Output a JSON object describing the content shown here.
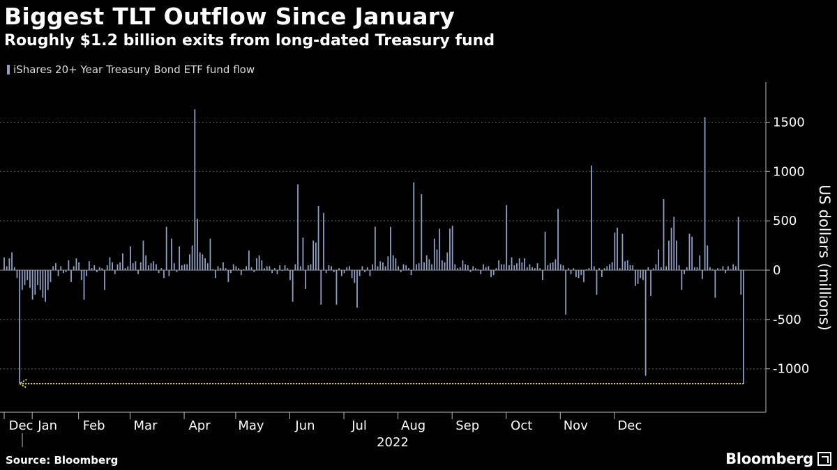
{
  "header": {
    "title": "Biggest TLT Outflow Since January",
    "subtitle": "Roughly $1.2 billion exits from long-dated Treasury fund"
  },
  "legend": {
    "label": "iShares 20+ Year Treasury Bond ETF fund flow"
  },
  "footer": {
    "source": "Source: Bloomberg",
    "brand": "Bloomberg"
  },
  "colors": {
    "bar": "#8fa0c4",
    "annotation": "#ffdf2e",
    "grid": "#666666",
    "background": "#000000"
  },
  "chart_data": {
    "type": "bar",
    "title": "Biggest TLT Outflow Since January",
    "ylabel": "US dollars (millions)",
    "xlabel": "2022",
    "ylim": [
      -1400,
      1900
    ],
    "yticks": [
      -1000,
      -500,
      0,
      500,
      1000,
      1500
    ],
    "grid": true,
    "legend_position": "top-left",
    "series": [
      {
        "name": "iShares 20+ Year Treasury Bond ETF fund flow",
        "values": [
          130,
          40,
          120,
          180,
          30,
          -80,
          -1150,
          -200,
          -150,
          -100,
          -180,
          -300,
          -250,
          -150,
          -200,
          -280,
          -320,
          -200,
          -120,
          40,
          70,
          -60,
          40,
          -30,
          -20,
          100,
          -120,
          40,
          120,
          80,
          -100,
          -300,
          -60,
          90,
          20,
          50,
          -20,
          30,
          20,
          -200,
          50,
          130,
          80,
          -40,
          60,
          80,
          170,
          20,
          40,
          240,
          70,
          90,
          -40,
          80,
          300,
          150,
          50,
          70,
          90,
          60,
          -30,
          20,
          -80,
          440,
          -60,
          320,
          70,
          -20,
          240,
          50,
          60,
          60,
          160,
          250,
          1630,
          520,
          180,
          160,
          120,
          70,
          320,
          10,
          -80,
          40,
          20,
          80,
          20,
          -120,
          -30,
          60,
          40,
          20,
          -50,
          10,
          40,
          200,
          30,
          -20,
          120,
          150,
          100,
          20,
          40,
          40,
          -30,
          20,
          -40,
          50,
          0,
          50,
          20,
          -100,
          -320,
          60,
          870,
          40,
          330,
          -190,
          50,
          60,
          300,
          280,
          650,
          -350,
          580,
          -30,
          50,
          40,
          -20,
          -350,
          20,
          -60,
          -30,
          30,
          40,
          -80,
          -130,
          -380,
          -60,
          40,
          -20,
          30,
          -60,
          60,
          440,
          40,
          90,
          80,
          40,
          140,
          440,
          150,
          120,
          40,
          -20,
          60,
          50,
          20,
          -50,
          890,
          60,
          70,
          770,
          80,
          150,
          110,
          60,
          320,
          210,
          420,
          100,
          80,
          180,
          420,
          450,
          60,
          20,
          30,
          100,
          60,
          50,
          -20,
          40,
          20,
          10,
          -40,
          60,
          30,
          40,
          -70,
          -50,
          20,
          100,
          60,
          60,
          660,
          50,
          130,
          50,
          70,
          120,
          80,
          120,
          30,
          60,
          30,
          20,
          70,
          20,
          -100,
          390,
          50,
          70,
          80,
          110,
          620,
          60,
          50,
          -450,
          20,
          -40,
          20,
          -70,
          -80,
          -50,
          -120,
          10,
          20,
          1060,
          40,
          -250,
          20,
          -70,
          20,
          40,
          60,
          80,
          380,
          430,
          20,
          370,
          90,
          100,
          50,
          50,
          -160,
          -140,
          -80,
          -100,
          -1070,
          30,
          -260,
          20,
          60,
          210,
          30,
          720,
          40,
          300,
          430,
          540,
          300,
          50,
          -200,
          -40,
          30,
          370,
          340,
          30,
          30,
          150,
          -90,
          1550,
          250,
          30,
          10,
          -280,
          20,
          10,
          40,
          -30,
          40,
          10,
          60,
          40,
          540,
          -250,
          -1150
        ]
      }
    ],
    "x_axis_labels": [
      "Dec",
      "Jan",
      "Feb",
      "Mar",
      "Apr",
      "May",
      "Jun",
      "Jul",
      "Aug",
      "Sep",
      "Oct",
      "Nov",
      "Dec"
    ],
    "x_axis_label_index": [
      0,
      6,
      24,
      44,
      65,
      85,
      106,
      127,
      148,
      169,
      190,
      211,
      232
    ],
    "annotations": [
      {
        "type": "dotted-arrow",
        "value": -1150,
        "from_index": 6,
        "to_index": 287
      }
    ]
  }
}
